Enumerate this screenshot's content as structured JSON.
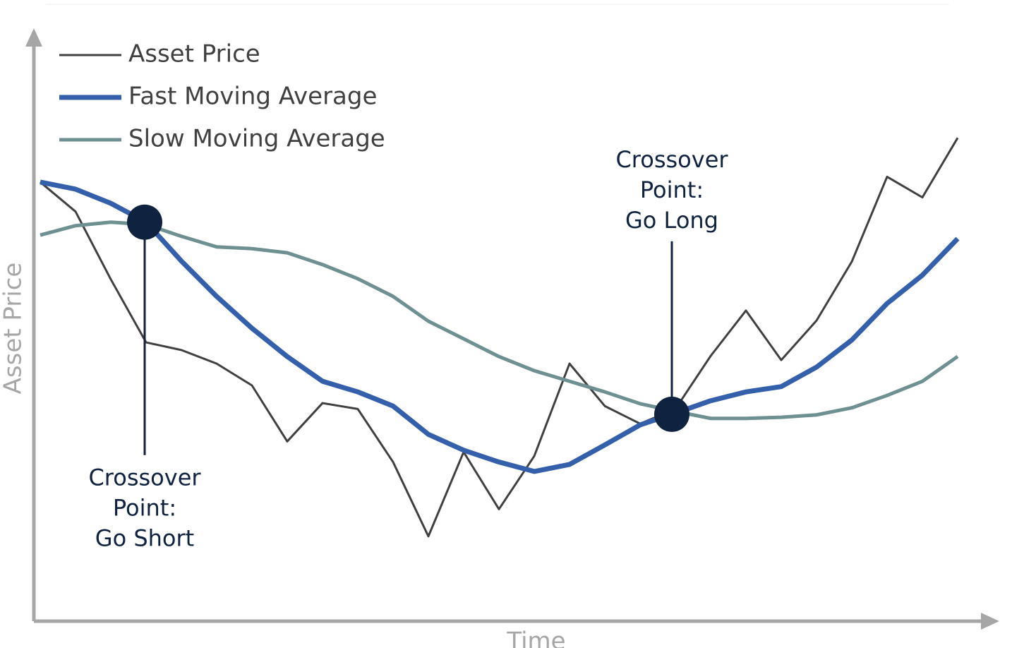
{
  "chart_data": {
    "type": "line",
    "x_label": "Time",
    "y_label": "Asset Price",
    "x": [
      0,
      1,
      2,
      3,
      4,
      5,
      6,
      7,
      8,
      9,
      10,
      11,
      12,
      13,
      14,
      15,
      16,
      17,
      18,
      19,
      20,
      21,
      22,
      23,
      24,
      25,
      26
    ],
    "xlim": [
      0,
      27
    ],
    "ylim": [
      0,
      100
    ],
    "series": [
      {
        "name": "Asset Price",
        "color": "#404040",
        "width": 3,
        "values": [
          74.5,
          69.5,
          58,
          47.3,
          46,
          43.7,
          40,
          30.5,
          37,
          36,
          27,
          14.4,
          28.7,
          19,
          28,
          43.7,
          36.5,
          33.5,
          36,
          45,
          52.7,
          44.3,
          51,
          61,
          75.4,
          71.9,
          82
        ]
      },
      {
        "name": "Fast Moving Average",
        "color": "#3460ab",
        "width": 7,
        "values": [
          74.5,
          73.3,
          70.9,
          67.7,
          61.1,
          55.1,
          49.7,
          44.9,
          40.7,
          38.9,
          36.5,
          31.7,
          29,
          27,
          25.4,
          26.6,
          29.9,
          33.3,
          35.3,
          37.4,
          38.9,
          39.8,
          43.1,
          47.7,
          53.9,
          58.7,
          64.9
        ]
      },
      {
        "name": "Slow Moving Average",
        "color": "#6f9090",
        "width": 5,
        "values": [
          65.5,
          67.1,
          67.7,
          67.3,
          65.3,
          63.5,
          63.2,
          62.5,
          60.5,
          58.1,
          55.1,
          50.9,
          47.9,
          44.9,
          42.5,
          40.7,
          38.9,
          36.9,
          35.6,
          34.4,
          34.4,
          34.6,
          35,
          36.2,
          38.3,
          40.7,
          44.9
        ]
      }
    ],
    "annotations": [
      {
        "lines": [
          "Crossover",
          "Point:",
          "Go Short"
        ],
        "x": 2.96,
        "y": 67.7,
        "position": "below"
      },
      {
        "lines": [
          "Crossover",
          "Point:",
          "Go Long"
        ],
        "x": 17.9,
        "y": 35.1,
        "position": "above"
      }
    ]
  }
}
